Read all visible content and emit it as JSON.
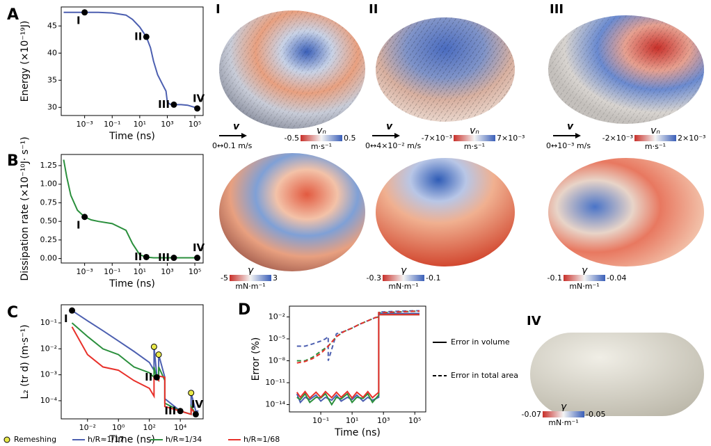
{
  "chart_data": [
    {
      "type": "line",
      "panel": "A",
      "xlabel": "Time (ns)",
      "ylabel": "Energy (×10⁻¹⁹J)",
      "xlog": true,
      "xlim": [
        2e-05,
        400000
      ],
      "ylim": [
        28.5,
        48.5
      ],
      "xticks": [
        {
          "value": 0.001,
          "label": "10⁻³"
        },
        {
          "value": 0.1,
          "label": "10⁻¹"
        },
        {
          "value": 10,
          "label": "10¹"
        },
        {
          "value": 1000,
          "label": "10³"
        },
        {
          "value": 100000,
          "label": "10⁵"
        }
      ],
      "yticks": [
        30,
        35,
        40,
        45
      ],
      "series": [
        {
          "color": "#4c5fb0",
          "x": [
            3e-05,
            0.001,
            0.01,
            0.1,
            1,
            3,
            10,
            30,
            60,
            100,
            200,
            500,
            800,
            1000,
            1500,
            3000,
            10000,
            30000,
            100000,
            150000,
            200000
          ],
          "values": [
            47.5,
            47.5,
            47.5,
            47.4,
            47.0,
            46.2,
            44.8,
            43,
            41,
            38.5,
            36,
            34,
            33,
            31,
            30.6,
            30.5,
            30.5,
            30.4,
            30,
            29.8,
            29.8
          ]
        }
      ],
      "markers": {
        "x": [
          0.001,
          30,
          3000,
          150000
        ],
        "y": [
          47.5,
          43,
          30.5,
          29.8
        ],
        "labels": [
          "I",
          "II",
          "III",
          "IV"
        ]
      }
    },
    {
      "type": "line",
      "panel": "B",
      "xlabel": "Time (ns)",
      "ylabel": "Dissipation rate (×10⁻¹⁰J· s⁻¹)",
      "xlog": true,
      "xlim": [
        2e-05,
        400000
      ],
      "ylim": [
        -0.06,
        1.4
      ],
      "xticks": [
        {
          "value": 0.001,
          "label": "10⁻³"
        },
        {
          "value": 0.1,
          "label": "10⁻¹"
        },
        {
          "value": 10,
          "label": "10¹"
        },
        {
          "value": 1000,
          "label": "10³"
        },
        {
          "value": 100000,
          "label": "10⁵"
        }
      ],
      "yticks": [
        {
          "value": 0,
          "label": "0.00"
        },
        {
          "value": 0.25,
          "label": "0.25"
        },
        {
          "value": 0.5,
          "label": "0.50"
        },
        {
          "value": 0.75,
          "label": "0.75"
        },
        {
          "value": 1,
          "label": "1.00"
        },
        {
          "value": 1.25,
          "label": "1.25"
        }
      ],
      "series": [
        {
          "color": "#2a8f3c",
          "x": [
            3e-05,
            5e-05,
            0.0001,
            0.0003,
            0.001,
            0.003,
            0.01,
            0.1,
            1,
            3,
            10,
            30,
            100,
            1000,
            10000,
            100000,
            200000
          ],
          "values": [
            1.33,
            1.1,
            0.85,
            0.65,
            0.56,
            0.52,
            0.5,
            0.47,
            0.38,
            0.2,
            0.05,
            0.02,
            0.01,
            0.01,
            0.01,
            0.01,
            0.01
          ]
        }
      ],
      "markers": {
        "x": [
          0.001,
          30,
          3000,
          150000
        ],
        "y": [
          0.56,
          0.02,
          0.01,
          0.01
        ],
        "labels": [
          "I",
          "II",
          "III",
          "IV"
        ]
      }
    },
    {
      "type": "line",
      "panel": "C",
      "xlabel": "Time (ns)",
      "ylabel": "L₂ (tr d) (m·s⁻¹)",
      "xlog": true,
      "ylog": true,
      "xlim": [
        0.0002,
        300000
      ],
      "ylim": [
        2e-05,
        0.5
      ],
      "xticks": [
        {
          "value": 0.01,
          "label": "10⁻²"
        },
        {
          "value": 1,
          "label": "10⁰"
        },
        {
          "value": 100,
          "label": "10²"
        },
        {
          "value": 10000,
          "label": "10⁴"
        }
      ],
      "yticks": [
        {
          "value": 0.0001,
          "label": "10⁻⁴"
        },
        {
          "value": 0.001,
          "label": "10⁻³"
        },
        {
          "value": 0.01,
          "label": "10⁻²"
        },
        {
          "value": 0.1,
          "label": "10⁻¹"
        }
      ],
      "series": [
        {
          "name": "h/R≈1/17",
          "color": "#4c5fb0",
          "x": [
            0.001,
            0.01,
            0.1,
            1,
            10,
            100,
            200,
            200,
            300,
            400,
            400,
            1000,
            1000,
            10000,
            50000,
            50000,
            100000,
            150000
          ],
          "values": [
            0.3,
            0.12,
            0.05,
            0.02,
            0.008,
            0.003,
            0.0015,
            0.012,
            0.001,
            0.0008,
            0.006,
            0.0008,
            0.00012,
            4e-05,
            3e-05,
            0.0002,
            4e-05,
            4e-05
          ]
        },
        {
          "name": "h/R≈1/34",
          "color": "#2a8f3c",
          "x": [
            0.001,
            0.01,
            0.1,
            1,
            10,
            100,
            200,
            200,
            300,
            400,
            400,
            1000,
            1000,
            10000,
            50000,
            50000,
            100000,
            150000
          ],
          "values": [
            0.1,
            0.03,
            0.01,
            0.006,
            0.002,
            0.0012,
            0.0008,
            0.002,
            0.0007,
            0.0006,
            0.002,
            0.0006,
            8e-05,
            4e-05,
            3e-05,
            6e-05,
            3e-05,
            3e-05
          ]
        },
        {
          "name": "h/R≈1/68",
          "color": "#e8302a",
          "x": [
            0.001,
            0.01,
            0.1,
            1,
            10,
            100,
            200,
            200,
            400,
            400,
            1000,
            1000,
            10000,
            50000,
            50000,
            100000,
            150000
          ],
          "values": [
            0.07,
            0.006,
            0.002,
            0.0015,
            0.0006,
            0.0003,
            0.00015,
            0.0008,
            0.0006,
            0.0009,
            0.0008,
            6e-05,
            4e-05,
            3e-05,
            5e-05,
            3e-05,
            3e-05
          ]
        }
      ],
      "markers": {
        "x": [
          0.001,
          300,
          10000,
          100000
        ],
        "y": [
          0.3,
          0.0008,
          4e-05,
          3e-05
        ],
        "labels": [
          "I",
          "II",
          "III",
          "IV"
        ]
      },
      "remesh": {
        "name": "Remeshing",
        "color": "#e8e84a",
        "x": [
          200,
          400,
          50000
        ],
        "y": [
          0.012,
          0.006,
          0.0002
        ]
      }
    },
    {
      "type": "line",
      "panel": "D",
      "xlabel": "Time (ns)",
      "ylabel": "Error (%)",
      "xlog": true,
      "ylog": true,
      "xlim": [
        0.001,
        500000
      ],
      "ylim": [
        1e-15,
        0.3
      ],
      "xticks": [
        {
          "value": 0.1,
          "label": "10⁻¹"
        },
        {
          "value": 10,
          "label": "10¹"
        },
        {
          "value": 1000,
          "label": "10³"
        },
        {
          "value": 100000,
          "label": "10⁵"
        }
      ],
      "yticks": [
        {
          "value": 1e-14,
          "label": "10⁻¹⁴"
        },
        {
          "value": 1e-11,
          "label": "10⁻¹¹"
        },
        {
          "value": 1e-08,
          "label": "10⁻⁸"
        },
        {
          "value": 1e-05,
          "label": "10⁻⁵"
        },
        {
          "value": 0.01,
          "label": "10⁻²"
        }
      ],
      "legend": [
        {
          "label": "Error in volume",
          "dash": false
        },
        {
          "label": "Error in total area",
          "dash": true
        }
      ],
      "series": [
        {
          "color": "#4c5fb0",
          "dash": false,
          "x": [
            0.003,
            0.005,
            0.01,
            0.02,
            0.05,
            0.1,
            0.2,
            0.5,
            1,
            2,
            5,
            10,
            20,
            50,
            100,
            200,
            500,
            500,
            1000,
            10000,
            100000,
            200000
          ],
          "values": [
            3e-13,
            2e-14,
            1e-13,
            5e-14,
            2e-13,
            3e-14,
            1e-13,
            4e-14,
            2e-13,
            3e-14,
            1e-13,
            5e-14,
            2e-13,
            3e-14,
            1e-13,
            4e-14,
            1e-13,
            0.03,
            0.03,
            0.03,
            0.03,
            0.03
          ]
        },
        {
          "color": "#2a8f3c",
          "dash": false,
          "x": [
            0.003,
            0.005,
            0.01,
            0.02,
            0.05,
            0.1,
            0.2,
            0.5,
            1,
            2,
            5,
            10,
            20,
            50,
            100,
            200,
            500,
            500,
            1000,
            10000,
            100000,
            200000
          ],
          "values": [
            1e-13,
            5e-14,
            3e-13,
            2e-14,
            1e-13,
            8e-14,
            3e-13,
            1e-14,
            1e-13,
            6e-14,
            3e-13,
            2e-14,
            1e-13,
            7e-14,
            3e-13,
            2e-14,
            2e-13,
            0.02,
            0.02,
            0.02,
            0.02,
            0.02
          ]
        },
        {
          "color": "#e8302a",
          "dash": false,
          "x": [
            0.003,
            0.005,
            0.01,
            0.02,
            0.05,
            0.1,
            0.2,
            0.5,
            1,
            2,
            5,
            10,
            20,
            50,
            100,
            200,
            500,
            500,
            1000,
            10000,
            100000,
            200000
          ],
          "values": [
            5e-13,
            1e-13,
            6e-13,
            8e-14,
            5e-13,
            1e-13,
            6e-13,
            9e-14,
            5e-13,
            1e-13,
            6e-13,
            8e-14,
            5e-13,
            1e-13,
            6e-13,
            9e-14,
            5e-13,
            0.02,
            0.02,
            0.02,
            0.02,
            0.02
          ]
        },
        {
          "color": "#4c5fb0",
          "dash": true,
          "x": [
            0.003,
            0.01,
            0.03,
            0.1,
            0.2,
            0.3,
            0.3,
            1,
            3,
            10,
            30,
            100,
            300,
            500,
            500,
            1000,
            10000,
            100000,
            200000
          ],
          "values": [
            1e-06,
            1e-06,
            2e-06,
            5e-06,
            1e-05,
            2e-05,
            1e-08,
            5e-05,
            0.0001,
            0.0003,
            0.001,
            0.003,
            0.008,
            0.01,
            0.05,
            0.05,
            0.06,
            0.07,
            0.07
          ]
        },
        {
          "color": "#2a8f3c",
          "dash": true,
          "x": [
            0.003,
            0.01,
            0.03,
            0.1,
            0.3,
            1,
            3,
            10,
            30,
            100,
            300,
            500,
            500,
            1000,
            10000,
            100000,
            200000
          ],
          "values": [
            1e-08,
            1e-08,
            3e-08,
            2e-07,
            1e-06,
            2e-05,
            0.0001,
            0.0003,
            0.001,
            0.003,
            0.008,
            0.01,
            0.04,
            0.04,
            0.05,
            0.06,
            0.06
          ]
        },
        {
          "color": "#e8302a",
          "dash": true,
          "x": [
            0.003,
            0.01,
            0.03,
            0.1,
            0.3,
            1,
            3,
            10,
            30,
            100,
            300,
            500,
            500,
            1000,
            10000,
            100000,
            200000
          ],
          "values": [
            5e-09,
            8e-09,
            2e-08,
            1e-07,
            1e-06,
            2e-05,
            0.0001,
            0.0003,
            0.001,
            0.003,
            0.008,
            0.01,
            0.04,
            0.04,
            0.05,
            0.06,
            0.06
          ]
        }
      ]
    }
  ],
  "shapes": [
    {
      "label": "I",
      "arrow_symbol": "v",
      "speed": "0↔0.1 m/s",
      "velocity_bar": {
        "symbol": "vₙ",
        "min": -0.5,
        "max": 0.5,
        "unit": "m·s⁻¹"
      },
      "tension_bar": {
        "symbol": "γ",
        "min": -5,
        "max": 3,
        "unit": "mN·m⁻¹"
      }
    },
    {
      "label": "II",
      "arrow_symbol": "v",
      "speed": "0↔4×10⁻² m/s",
      "velocity_bar": {
        "symbol": "vₙ",
        "min": "-7×10⁻³",
        "max": "7×10⁻³",
        "unit": "m·s⁻¹"
      },
      "tension_bar": {
        "symbol": "γ",
        "min": -0.3,
        "max": -0.1,
        "unit": "mN·m⁻¹"
      }
    },
    {
      "label": "III",
      "arrow_symbol": "v",
      "speed": "0↔10⁻³ m/s",
      "velocity_bar": {
        "symbol": "vₙ",
        "min": "-2×10⁻³",
        "max": "2×10⁻³",
        "unit": "m·s⁻¹"
      },
      "tension_bar": {
        "symbol": "γ",
        "min": -0.1,
        "max": -0.04,
        "unit": "mN·m⁻¹"
      }
    },
    {
      "label": "IV",
      "tension_bar": {
        "symbol": "γ",
        "min": -0.07,
        "max": -0.05,
        "unit": "mN·m⁻¹"
      }
    }
  ]
}
